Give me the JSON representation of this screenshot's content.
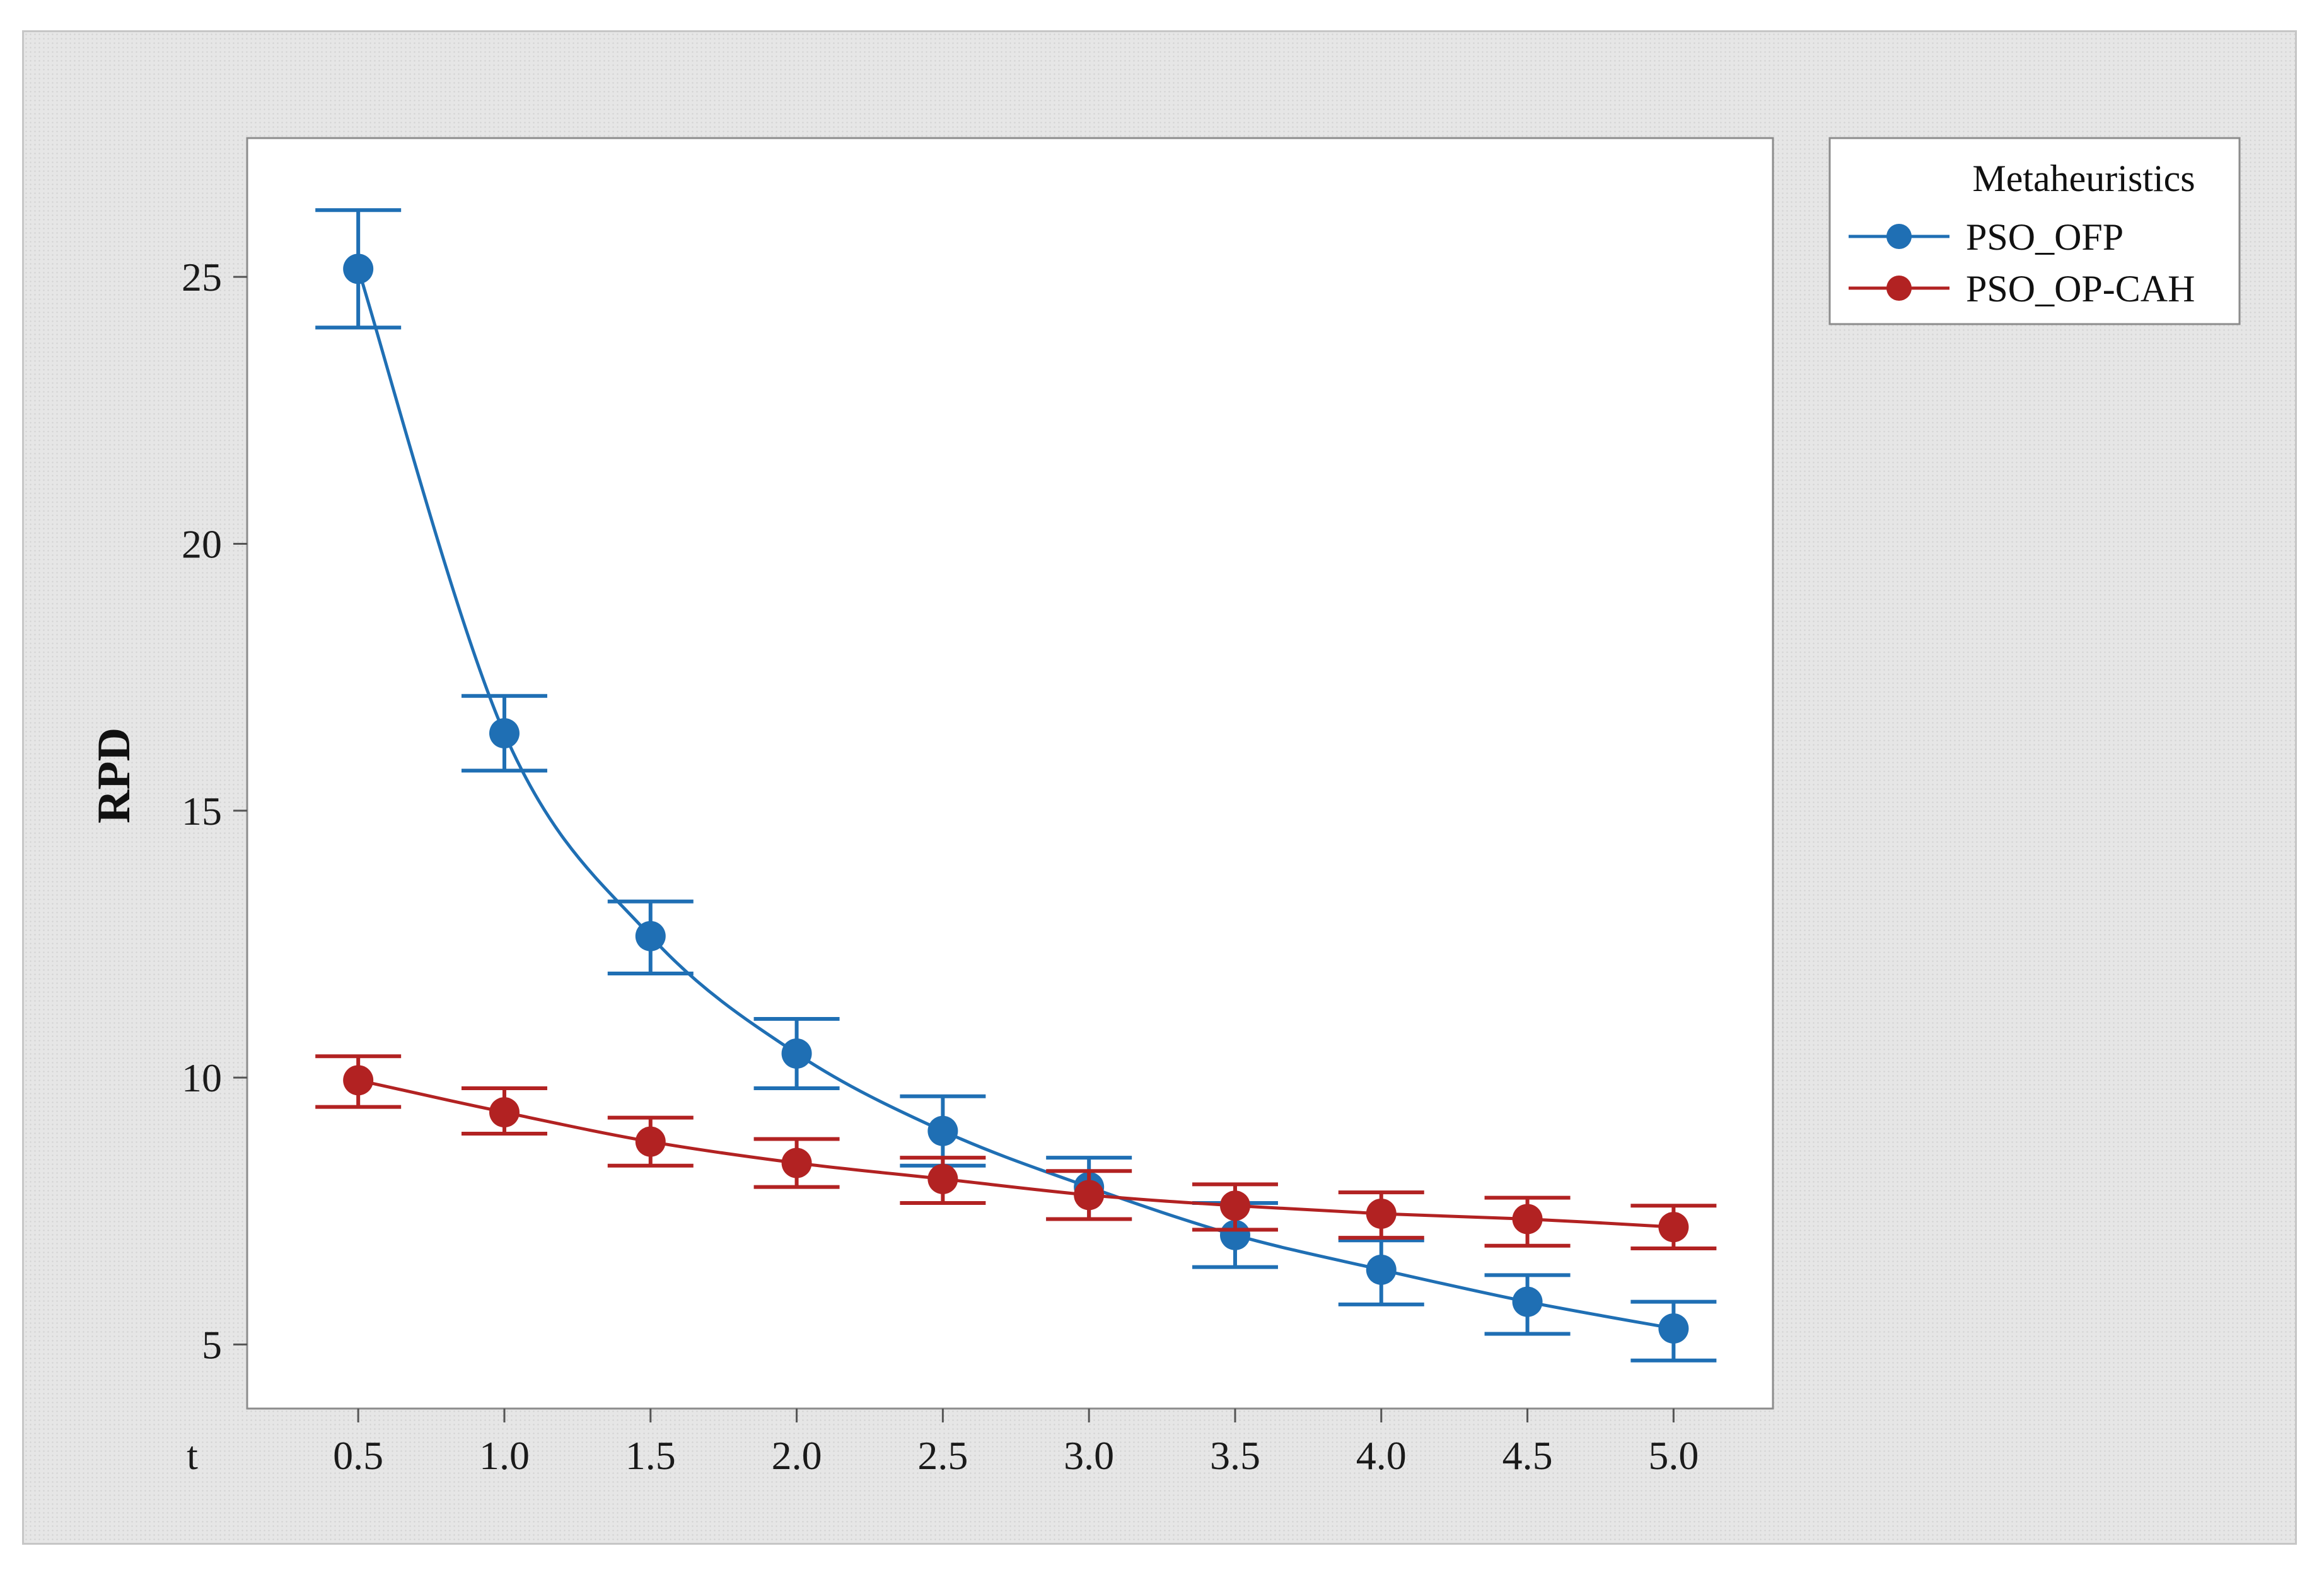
{
  "chart_data": {
    "type": "line",
    "title": "",
    "xlabel": "t",
    "ylabel": "RPD",
    "x": [
      0.5,
      1.0,
      1.5,
      2.0,
      2.5,
      3.0,
      3.5,
      4.0,
      4.5,
      5.0
    ],
    "x_tick_labels": [
      "0.5",
      "1.0",
      "1.5",
      "2.0",
      "2.5",
      "3.0",
      "3.5",
      "4.0",
      "4.5",
      "5.0"
    ],
    "xlim": [
      0.12,
      5.34
    ],
    "y_ticks": [
      5,
      10,
      15,
      20,
      25
    ],
    "ylim": [
      3.8,
      27.6
    ],
    "grid": false,
    "legend": {
      "title": "Metaheuristics",
      "position": "top-right outside plot"
    },
    "series": [
      {
        "name": "PSO_OFP",
        "color": "#1f6fb4",
        "values": [
          25.15,
          16.45,
          12.65,
          10.45,
          9.0,
          7.95,
          7.05,
          6.4,
          5.8,
          5.3
        ],
        "lower": [
          24.05,
          15.75,
          11.95,
          9.8,
          8.35,
          7.35,
          6.45,
          5.75,
          5.2,
          4.7
        ],
        "upper": [
          26.25,
          17.15,
          13.3,
          11.1,
          9.65,
          8.5,
          7.65,
          6.95,
          6.3,
          5.8
        ]
      },
      {
        "name": "PSO_OP-CAH",
        "color": "#b22222",
        "values": [
          9.95,
          9.35,
          8.8,
          8.4,
          8.1,
          7.8,
          7.6,
          7.45,
          7.35,
          7.2
        ],
        "lower": [
          9.45,
          8.95,
          8.35,
          7.95,
          7.65,
          7.35,
          7.15,
          7.0,
          6.85,
          6.8
        ],
        "upper": [
          10.4,
          9.8,
          9.25,
          8.85,
          8.5,
          8.25,
          8.0,
          7.85,
          7.75,
          7.6
        ]
      }
    ]
  }
}
